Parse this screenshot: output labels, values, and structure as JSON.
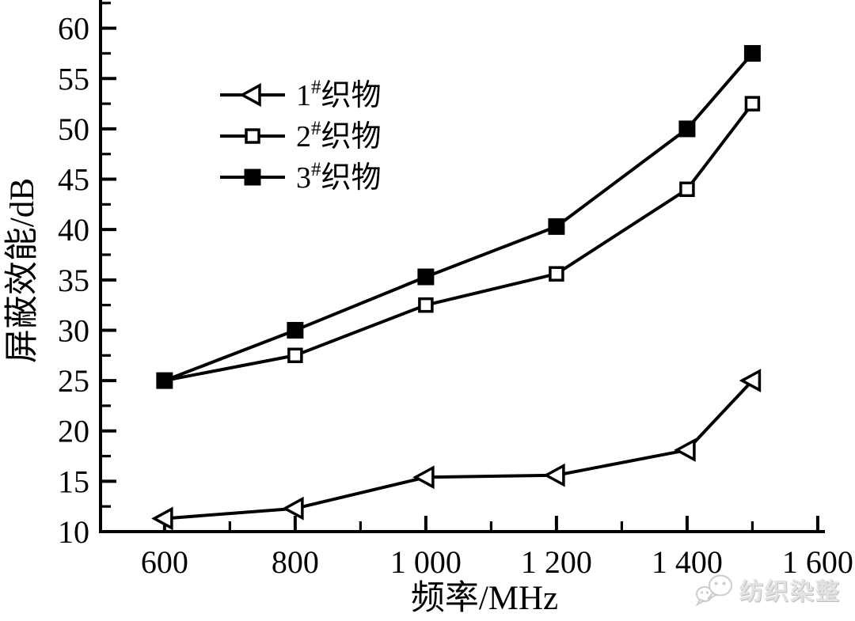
{
  "figure": {
    "background": "#ffffff",
    "ink_color": "#000000"
  },
  "watermark": {
    "icon": "wechat-icon",
    "text": "纺织染整",
    "color": "#d9d9d9"
  },
  "chart_data": {
    "type": "line",
    "title": "",
    "xlabel": "频率/MHz",
    "ylabel": "屏蔽效能/dB",
    "x": [
      600,
      800,
      1000,
      1200,
      1400,
      1500
    ],
    "series": [
      {
        "name": "1#织物",
        "marker": "triangle-left-open",
        "values": [
          11.3,
          12.3,
          15.4,
          15.6,
          18.1,
          25.0
        ]
      },
      {
        "name": "2#织物",
        "marker": "square-open",
        "values": [
          25.0,
          27.5,
          32.5,
          35.6,
          44.0,
          52.5
        ]
      },
      {
        "name": "3#织物",
        "marker": "square-filled",
        "values": [
          25.0,
          30.0,
          35.3,
          40.3,
          50.0,
          57.5
        ]
      }
    ],
    "x_ticks": [
      600,
      800,
      1000,
      1200,
      1400,
      1600
    ],
    "x_tick_labels": [
      "600",
      "800",
      "1 000",
      "1 200",
      "1 400",
      "1 600"
    ],
    "x_minor_step": 100,
    "y_ticks": [
      10,
      15,
      20,
      25,
      30,
      35,
      40,
      45,
      50,
      55,
      60
    ],
    "y_tick_labels": [
      "10",
      "15",
      "20",
      "25",
      "30",
      "35",
      "40",
      "45",
      "50",
      "55",
      "60"
    ],
    "y_minor_step": 2.5,
    "xlim": [
      502,
      1611
    ],
    "ylim": [
      10,
      62.8
    ],
    "grid": false,
    "legend_position": "upper-left-inside",
    "line_color": "#000000"
  }
}
